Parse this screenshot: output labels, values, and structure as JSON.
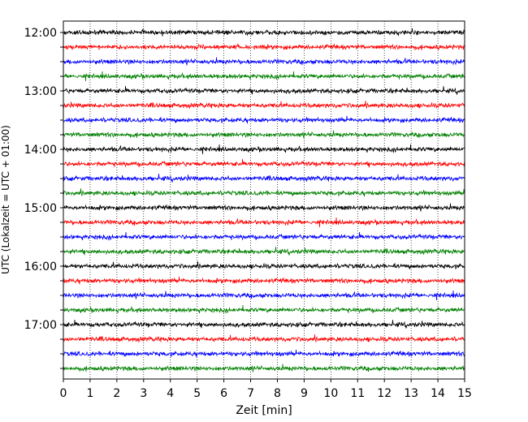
{
  "chart_data": {
    "type": "line",
    "title": "",
    "xlabel": "Zeit  [min]",
    "ylabel": "UTC (Lokalzeit = UTC + 01:00)",
    "xlim": [
      0,
      15
    ],
    "x_ticks": [
      "0",
      "1",
      "2",
      "3",
      "4",
      "5",
      "6",
      "7",
      "8",
      "9",
      "10",
      "11",
      "12",
      "13",
      "14",
      "15"
    ],
    "y_tick_labels": [
      "12:00",
      "13:00",
      "14:00",
      "15:00",
      "16:00",
      "17:00"
    ],
    "traces_per_hour": 4,
    "trace_count": 24,
    "trace_colors": [
      "#000000",
      "#ff0000",
      "#0000ff",
      "#008000"
    ],
    "grid": "vertical dotted"
  }
}
